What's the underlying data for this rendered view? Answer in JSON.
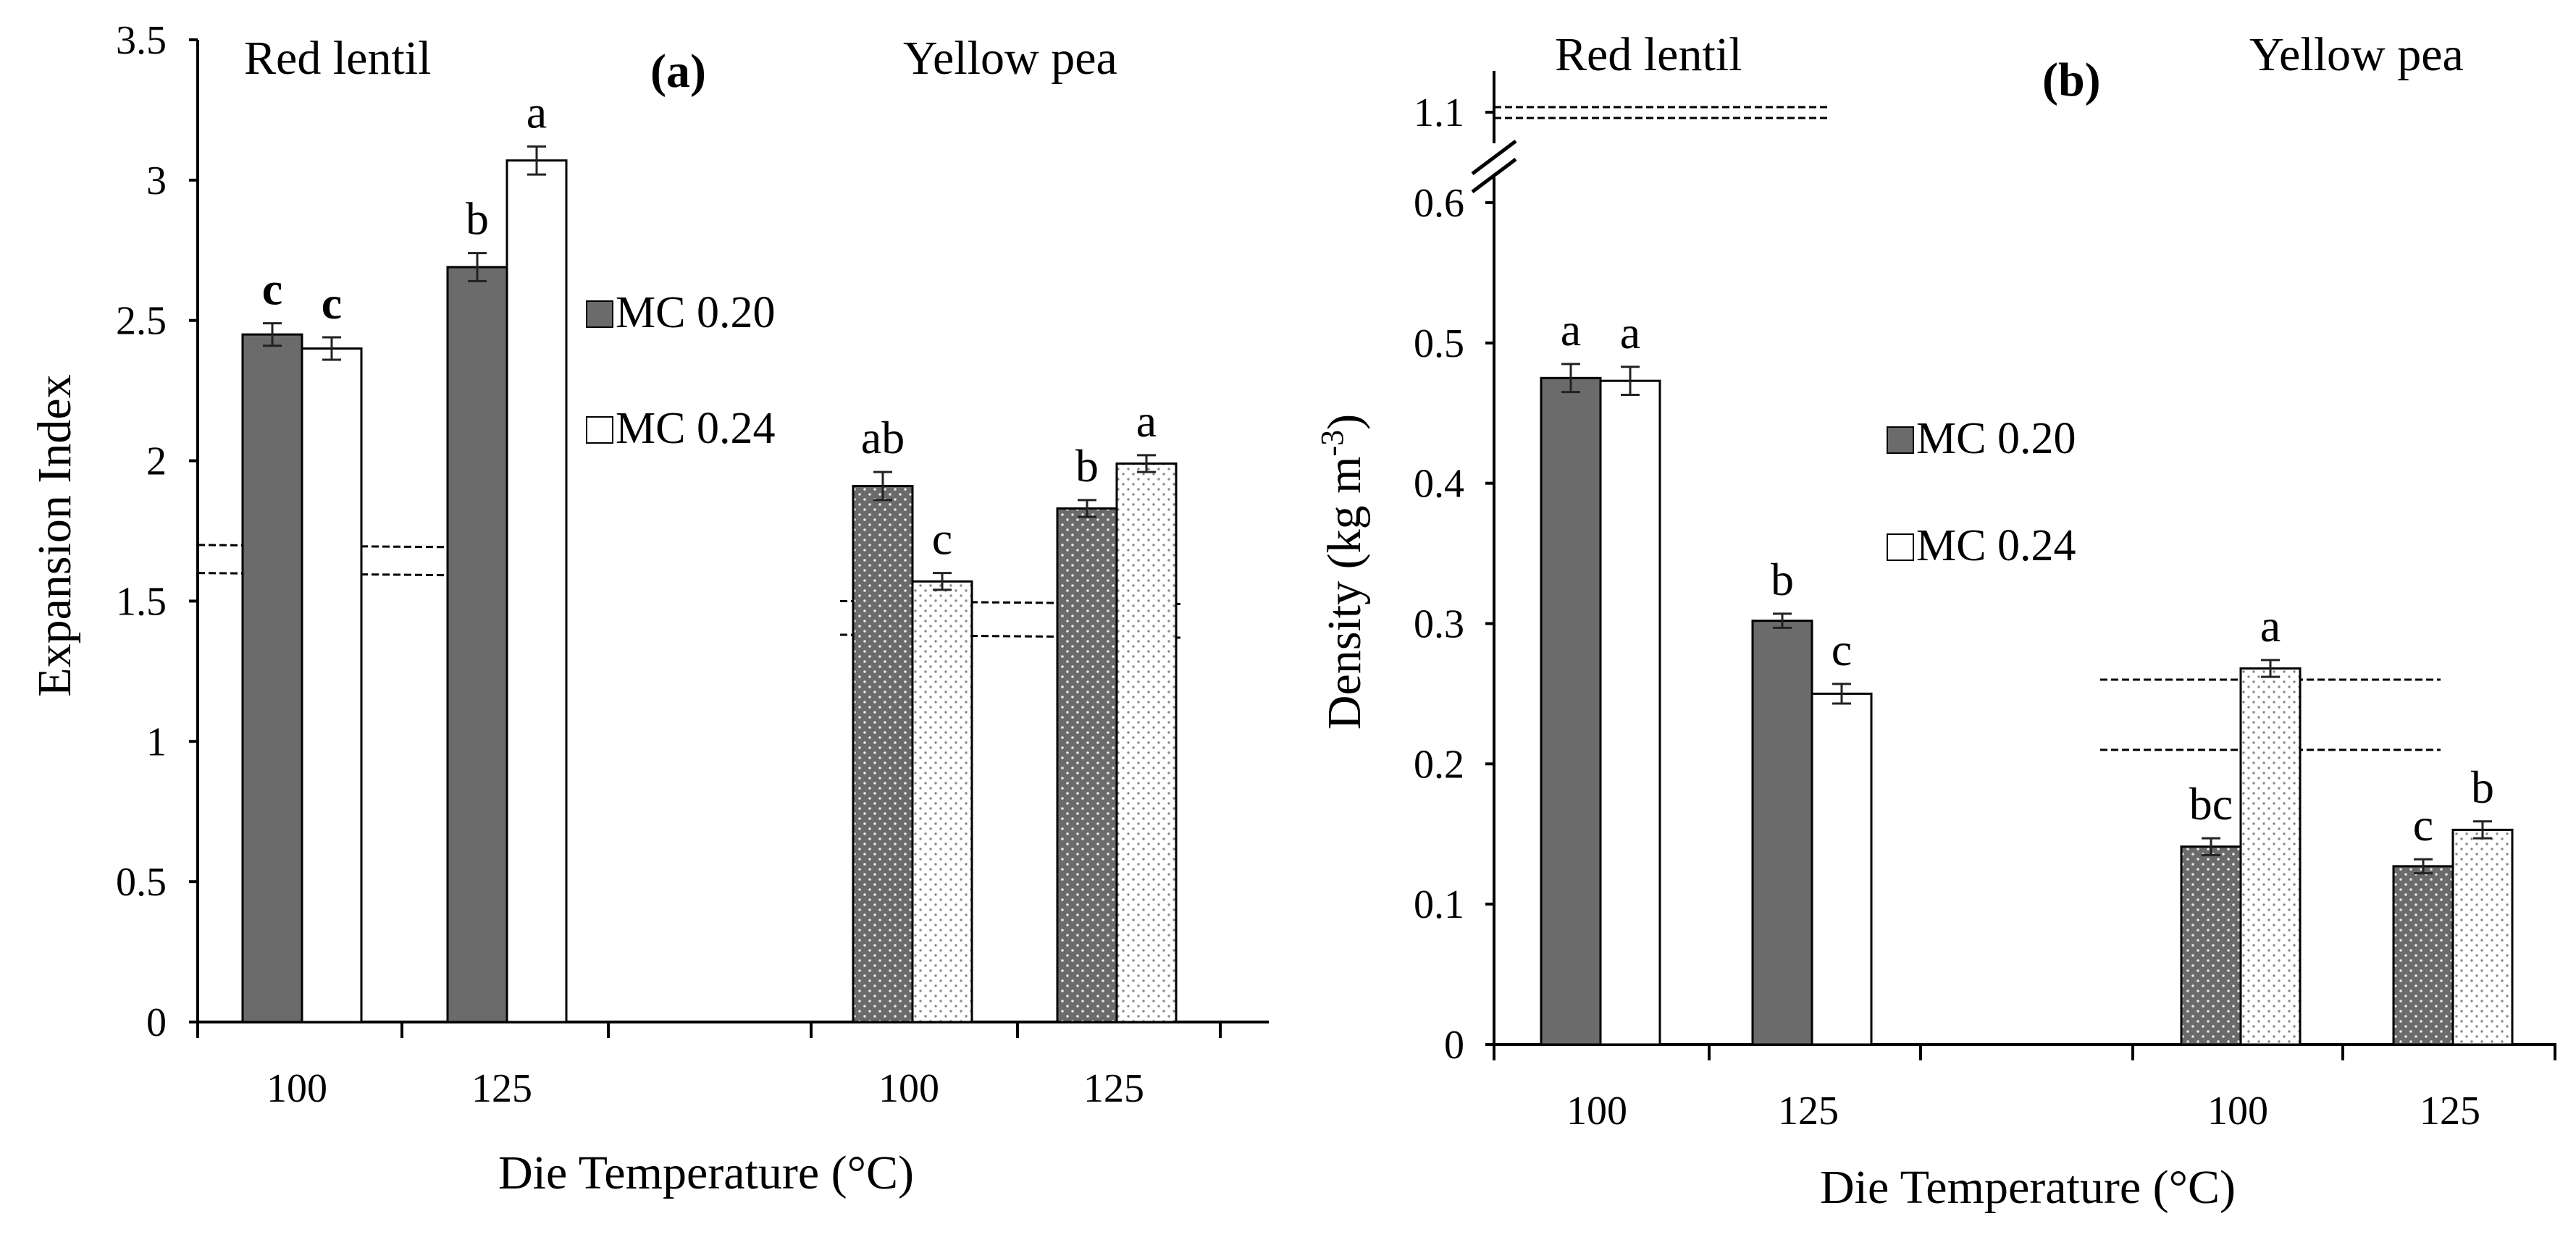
{
  "chart_data": [
    {
      "id": "a",
      "type": "bar",
      "panel_label": "(a)",
      "group_labels": [
        "Red lentil",
        "Yellow pea"
      ],
      "categories": [
        "100",
        "125",
        "100",
        "125"
      ],
      "category_groups": [
        "Red lentil",
        "Red lentil",
        "Yellow pea",
        "Yellow pea"
      ],
      "xlabel": "Die Temperature (°C)",
      "ylabel": "Expansion Index",
      "ylim": [
        0,
        3.5
      ],
      "yticks": [
        "0",
        "0.5",
        "1",
        "1.5",
        "2",
        "2.5",
        "3",
        "3.5"
      ],
      "series": [
        {
          "name": "MC 0.20",
          "values": [
            2.45,
            2.69,
            1.91,
            1.83
          ],
          "errors": [
            0.04,
            0.05,
            0.05,
            0.03
          ],
          "letters": [
            "c",
            "b",
            "ab",
            "b"
          ]
        },
        {
          "name": "MC 0.24",
          "values": [
            2.4,
            3.07,
            1.57,
            1.99
          ],
          "errors": [
            0.04,
            0.05,
            0.03,
            0.03
          ],
          "letters": [
            "c",
            "a",
            "c",
            "a"
          ]
        }
      ],
      "legend": [
        "MC 0.20",
        "MC 0.24"
      ],
      "reference_lines": [
        {
          "group": "Red lentil",
          "values": [
            1.7,
            1.6
          ]
        },
        {
          "group": "Yellow pea",
          "values": [
            1.5,
            1.38
          ]
        }
      ]
    },
    {
      "id": "b",
      "type": "bar",
      "panel_label": "(b)",
      "group_labels": [
        "Red lentil",
        "Yellow pea"
      ],
      "categories": [
        "100",
        "125",
        "100",
        "125"
      ],
      "category_groups": [
        "Red lentil",
        "Red lentil",
        "Yellow pea",
        "Yellow pea"
      ],
      "xlabel": "Die Temperature (°C)",
      "ylabel": "Density (kg m",
      "ylabel_sup": "-3",
      "ylabel_end": ")",
      "ylim": [
        0,
        0.6
      ],
      "yticks": [
        "0",
        "0.1",
        "0.2",
        "0.3",
        "0.4",
        "0.5",
        "0.6"
      ],
      "axis_break_tick": "1.1",
      "series": [
        {
          "name": "MC 0.20",
          "values": [
            0.475,
            0.302,
            0.141,
            0.127
          ],
          "errors": [
            0.01,
            0.005,
            0.006,
            0.005
          ],
          "letters": [
            "a",
            "b",
            "bc",
            "c"
          ]
        },
        {
          "name": "MC 0.24",
          "values": [
            0.473,
            0.25,
            0.268,
            0.153
          ],
          "errors": [
            0.01,
            0.007,
            0.006,
            0.006
          ],
          "letters": [
            "a",
            "c",
            "a",
            "b"
          ]
        }
      ],
      "legend": [
        "MC 0.20",
        "MC 0.24"
      ],
      "reference_lines": [
        {
          "group": "Red lentil",
          "values": [
            1.1,
            1.1
          ]
        },
        {
          "group": "Yellow pea",
          "values": [
            0.26,
            0.21
          ]
        }
      ]
    }
  ]
}
